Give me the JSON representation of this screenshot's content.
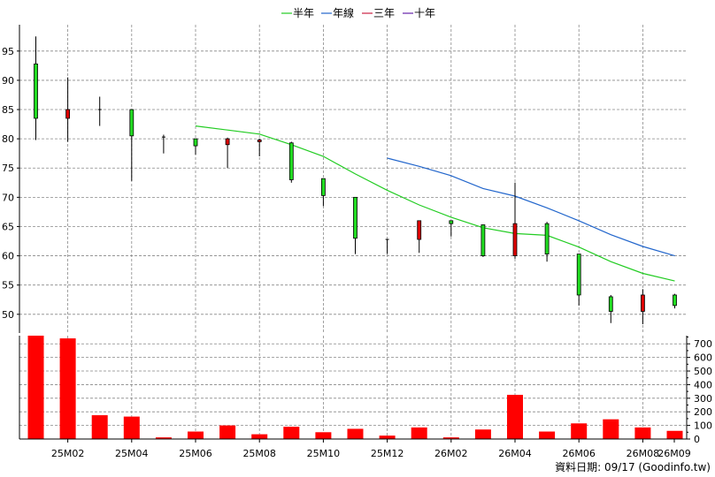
{
  "chart_data": {
    "type": "candlestick",
    "legend": [
      {
        "name": "半年",
        "color": "#22cc22"
      },
      {
        "name": "年線",
        "color": "#2266cc"
      },
      {
        "name": "三年",
        "color": "#cc2244"
      },
      {
        "name": "十年",
        "color": "#6622aa"
      }
    ],
    "colors": {
      "up": "#22dd22",
      "down": "#dd0000",
      "volume": "#ff0000",
      "grid": "#888888"
    },
    "x_labels": [
      "25M02",
      "25M04",
      "25M06",
      "25M08",
      "25M10",
      "25M12",
      "26M02",
      "26M04",
      "26M06",
      "26M08",
      "26M09"
    ],
    "price_axis": {
      "ticks": [
        50,
        55,
        60,
        65,
        70,
        75,
        80,
        85,
        90,
        95
      ],
      "ylim": [
        46.8,
        99.5
      ]
    },
    "volume_axis": {
      "ticks": [
        0,
        100,
        200,
        300,
        400,
        500,
        600,
        700
      ],
      "ylim": [
        0,
        760
      ]
    },
    "candles": [
      {
        "o": 83.5,
        "h": 97.5,
        "l": 79.8,
        "c": 92.8,
        "v": 760
      },
      {
        "o": 85.0,
        "h": 90.5,
        "l": 79.5,
        "c": 83.5,
        "v": 740
      },
      {
        "o": 85.0,
        "h": 87.2,
        "l": 82.2,
        "c": 85.0,
        "v": 175
      },
      {
        "o": 80.5,
        "h": 85.0,
        "l": 72.8,
        "c": 85.0,
        "v": 165
      },
      {
        "o": 80.3,
        "h": 80.7,
        "l": 77.5,
        "c": 80.3,
        "v": 12
      },
      {
        "o": 78.8,
        "h": 80.0,
        "l": 77.3,
        "c": 80.0,
        "v": 55
      },
      {
        "o": 80.0,
        "h": 80.2,
        "l": 75.0,
        "c": 79.0,
        "v": 100
      },
      {
        "o": 79.8,
        "h": 80.0,
        "l": 77.0,
        "c": 79.5,
        "v": 35
      },
      {
        "o": 73.0,
        "h": 79.5,
        "l": 72.5,
        "c": 79.3,
        "v": 90
      },
      {
        "o": 70.3,
        "h": 73.2,
        "l": 68.5,
        "c": 73.2,
        "v": 50
      },
      {
        "o": 63.0,
        "h": 70.0,
        "l": 60.3,
        "c": 70.0,
        "v": 75
      },
      {
        "o": 62.8,
        "h": 62.8,
        "l": 60.3,
        "c": 62.8,
        "v": 25
      },
      {
        "o": 66.0,
        "h": 66.0,
        "l": 60.5,
        "c": 62.8,
        "v": 85
      },
      {
        "o": 65.5,
        "h": 66.0,
        "l": 63.3,
        "c": 66.0,
        "v": 12
      },
      {
        "o": 60.0,
        "h": 65.3,
        "l": 59.8,
        "c": 65.3,
        "v": 70
      },
      {
        "o": 65.5,
        "h": 72.5,
        "l": 59.5,
        "c": 60.0,
        "v": 325
      },
      {
        "o": 60.3,
        "h": 65.8,
        "l": 59.0,
        "c": 65.5,
        "v": 55
      },
      {
        "o": 53.3,
        "h": 60.3,
        "l": 51.5,
        "c": 60.3,
        "v": 115
      },
      {
        "o": 50.5,
        "h": 53.3,
        "l": 48.5,
        "c": 53.0,
        "v": 145
      },
      {
        "o": 53.3,
        "h": 54.3,
        "l": 48.3,
        "c": 50.5,
        "v": 85
      },
      {
        "o": 51.5,
        "h": 53.5,
        "l": 51.0,
        "c": 53.3,
        "v": 60
      }
    ],
    "ma_half_year": {
      "start_index": 5,
      "values": [
        82.2,
        81.5,
        80.8,
        79.0,
        77.0,
        74.0,
        71.2,
        68.7,
        66.6,
        64.8,
        63.8,
        63.5,
        61.5,
        59.0,
        57.0,
        55.7
      ]
    },
    "ma_year": {
      "start_index": 11,
      "values": [
        76.7,
        75.3,
        73.7,
        71.5,
        70.2,
        68.2,
        66.0,
        63.6,
        61.6,
        60.0
      ]
    }
  },
  "footer": {
    "date_label": "資料日期: 09/17",
    "source": "(Goodinfo.tw)"
  }
}
